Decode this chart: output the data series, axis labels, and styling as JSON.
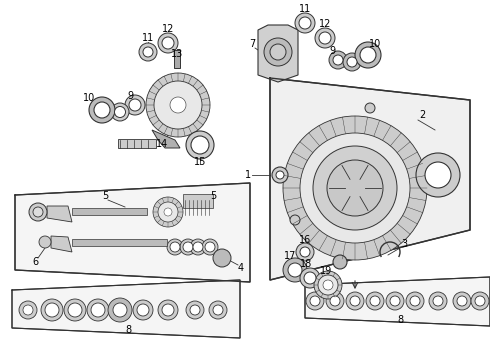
{
  "bg_color": "#ffffff",
  "line_color": "#333333",
  "fig_width": 4.9,
  "fig_height": 3.6,
  "dpi": 100,
  "xlim": [
    0,
    490
  ],
  "ylim": [
    0,
    360
  ]
}
